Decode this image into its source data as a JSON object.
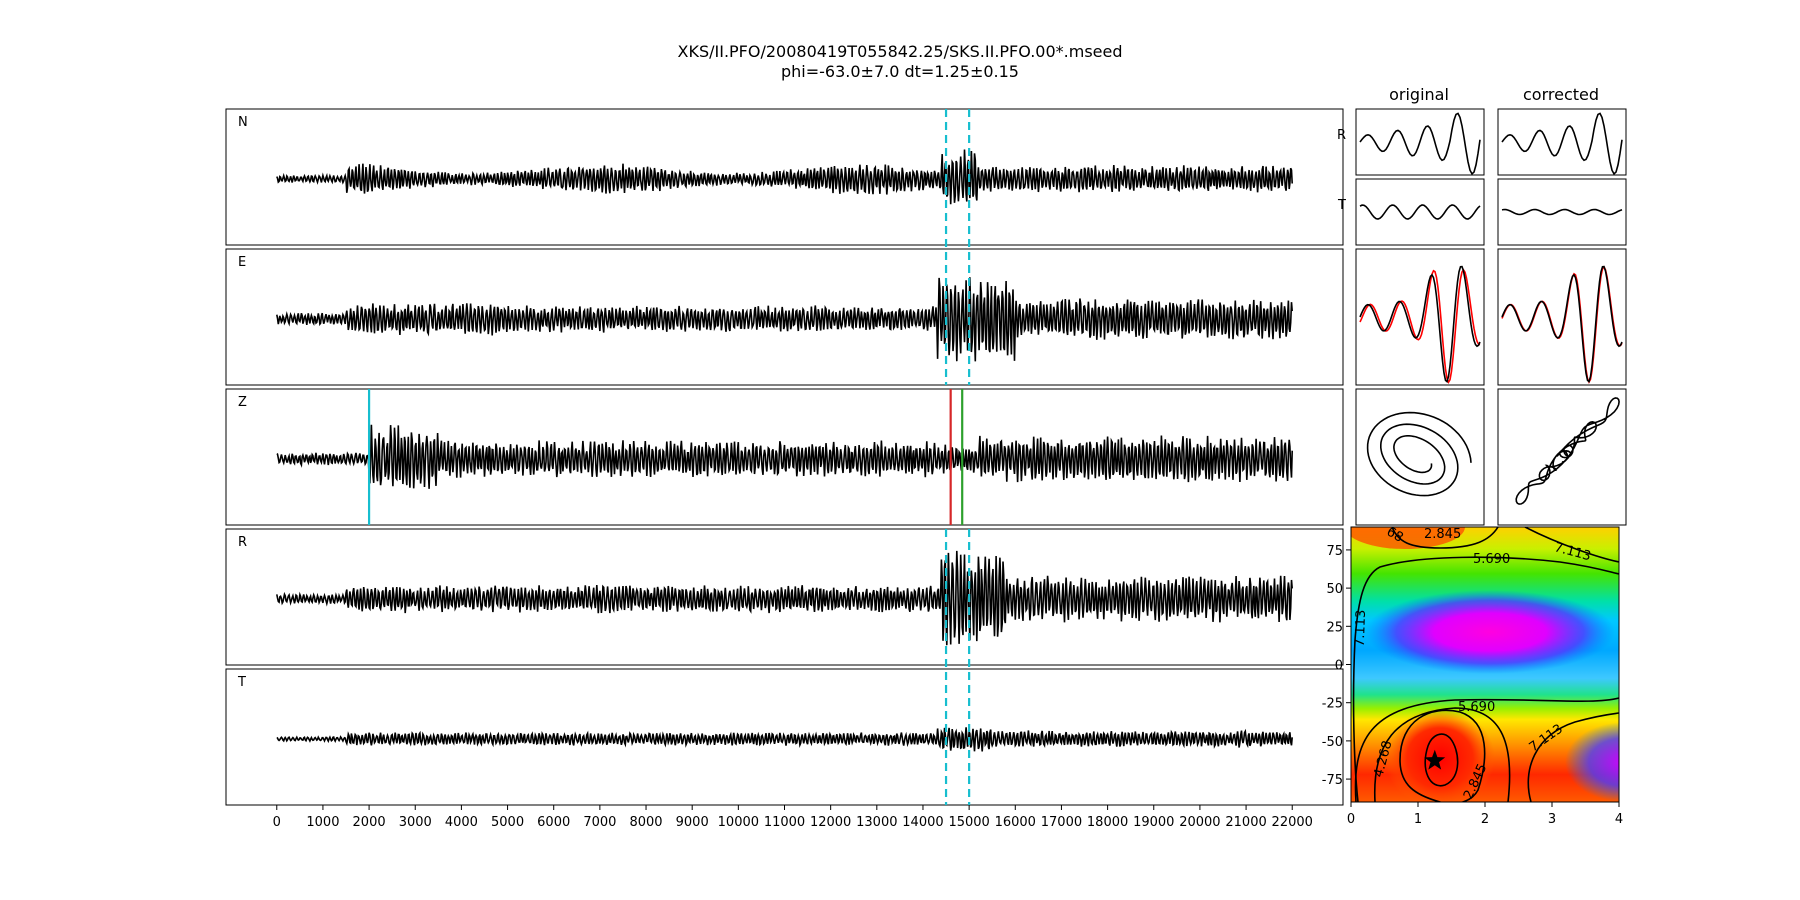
{
  "figure": {
    "title_line1": "XKS/II.PFO/20080419T055842.25/SKS.II.PFO.00*.mseed",
    "title_line2": "phi=-63.0±7.0 dt=1.25±0.15"
  },
  "chart_data": [
    {
      "type": "line",
      "name": "seismogram-traces",
      "panels": [
        "N",
        "E",
        "Z",
        "R",
        "T"
      ],
      "xlim": [
        -1100,
        23100
      ],
      "xticks": [
        0,
        1000,
        2000,
        3000,
        4000,
        5000,
        6000,
        7000,
        8000,
        9000,
        10000,
        11000,
        12000,
        13000,
        14000,
        15000,
        16000,
        17000,
        18000,
        19000,
        20000,
        21000,
        22000
      ],
      "xticklabels": [
        "0",
        "1000",
        "2000",
        "3000",
        "4000",
        "5000",
        "6000",
        "7000",
        "8000",
        "9000",
        "10000",
        "11000",
        "12000",
        "13000",
        "14000",
        "15000",
        "16000",
        "17000",
        "18000",
        "19000",
        "20000",
        "21000",
        "22000"
      ],
      "trace_range": [
        0,
        22000
      ],
      "window_start": 14500,
      "window_end": 15000,
      "z_markers": [
        {
          "x": 2000,
          "color": "#17becf"
        },
        {
          "x": 14600,
          "color": "#d62728"
        },
        {
          "x": 14850,
          "color": "#2ca02c"
        }
      ],
      "window_color": "#17becf"
    },
    {
      "type": "line",
      "name": "particle-motion-panels",
      "columns": [
        "original",
        "corrected"
      ],
      "rows": [
        "R",
        "T"
      ],
      "series_colors": [
        "#000000",
        "#ff0000"
      ]
    },
    {
      "type": "heatmap",
      "name": "splitting-energy-grid",
      "xlim": [
        0,
        4
      ],
      "ylim": [
        -90,
        90
      ],
      "xticks": [
        0,
        1,
        2,
        3,
        4
      ],
      "yticks": [
        -75,
        -50,
        -25,
        0,
        25,
        50,
        75
      ],
      "contour_labels": [
        "2.845",
        "5.690",
        "7.113",
        "5.690",
        "4.268",
        "7.113",
        "2.845",
        "7.113",
        "68"
      ],
      "minimum": {
        "dt": 1.25,
        "phi": -63.0
      }
    }
  ]
}
